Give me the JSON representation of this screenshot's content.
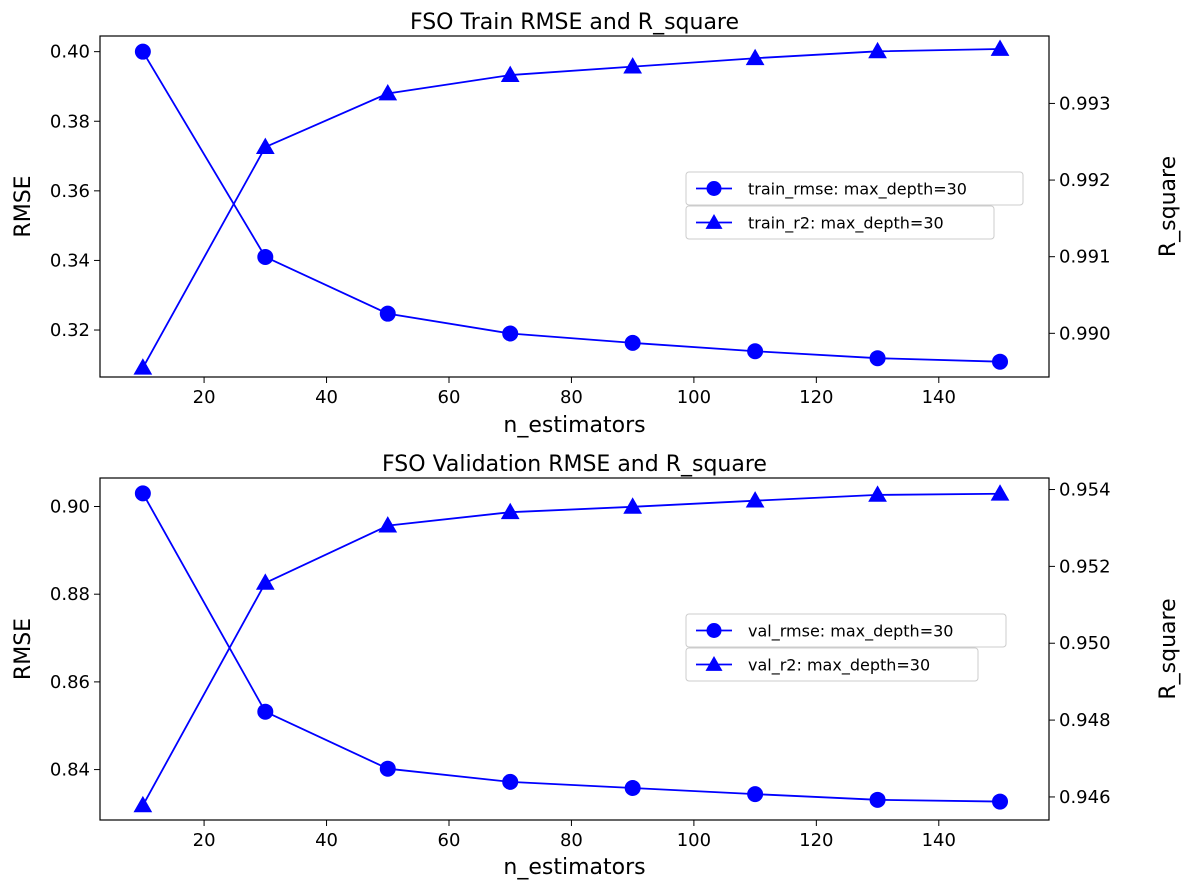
{
  "chart_data": [
    {
      "type": "line",
      "title": "FSO Train RMSE and R_square",
      "xlabel": "n_estimators",
      "ylabel": "RMSE",
      "y2label": "R_square",
      "x": [
        10,
        30,
        50,
        70,
        90,
        110,
        130,
        150
      ],
      "xticks": [
        20,
        40,
        60,
        80,
        100,
        120,
        140
      ],
      "xlim": [
        3,
        158
      ],
      "ylim": [
        0.3065,
        0.4045
      ],
      "yticks": [
        0.32,
        0.34,
        0.36,
        0.38,
        0.4
      ],
      "y2lim": [
        0.98943,
        0.99388
      ],
      "y2ticks": [
        0.99,
        0.991,
        0.992,
        0.993
      ],
      "legend_position": "center-right",
      "color": "#0000ff",
      "series": [
        {
          "name": "train_rmse: max_depth=30",
          "axis": "left",
          "marker": "circle",
          "values": [
            0.4,
            0.341,
            0.3247,
            0.319,
            0.3163,
            0.3139,
            0.3119,
            0.3109
          ]
        },
        {
          "name": "train_r2: max_depth=30",
          "axis": "right",
          "marker": "triangle",
          "values": [
            0.98955,
            0.99243,
            0.99313,
            0.99337,
            0.99348,
            0.99359,
            0.99368,
            0.99371
          ]
        }
      ]
    },
    {
      "type": "line",
      "title": "FSO Validation RMSE and R_square",
      "xlabel": "n_estimators",
      "ylabel": "RMSE",
      "y2label": "R_square",
      "x": [
        10,
        30,
        50,
        70,
        90,
        110,
        130,
        150
      ],
      "xticks": [
        20,
        40,
        60,
        80,
        100,
        120,
        140
      ],
      "xlim": [
        3,
        158
      ],
      "ylim": [
        0.8285,
        0.9065
      ],
      "yticks": [
        0.84,
        0.86,
        0.88,
        0.9
      ],
      "y2lim": [
        0.9454,
        0.9543
      ],
      "y2ticks": [
        0.946,
        0.948,
        0.95,
        0.952,
        0.954
      ],
      "legend_position": "center-right",
      "color": "#0000ff",
      "series": [
        {
          "name": "val_rmse: max_depth=30",
          "axis": "left",
          "marker": "circle",
          "values": [
            0.903,
            0.8532,
            0.8402,
            0.8372,
            0.8358,
            0.8344,
            0.8331,
            0.8327
          ]
        },
        {
          "name": "val_r2: max_depth=30",
          "axis": "right",
          "marker": "triangle",
          "values": [
            0.94578,
            0.95157,
            0.95306,
            0.95341,
            0.95355,
            0.95371,
            0.95386,
            0.95389
          ]
        }
      ]
    }
  ]
}
